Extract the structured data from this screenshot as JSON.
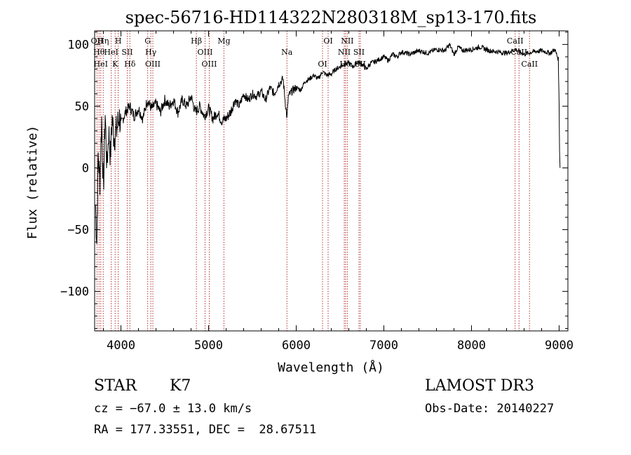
{
  "chart_data": {
    "type": "line",
    "title": "spec-56716-HD114322N280318M_sp13-170.fits",
    "xlabel": "Wavelength (Å)",
    "ylabel": "Flux (relative)",
    "xlim": [
      3700,
      9100
    ],
    "ylim": [
      -132,
      111
    ],
    "xticks": [
      4000,
      5000,
      6000,
      7000,
      8000,
      9000
    ],
    "xtick_labels": [
      "4000",
      "5000",
      "6000",
      "7000",
      "8000",
      "9000"
    ],
    "yticks": [
      -100,
      -50,
      0,
      50,
      100
    ],
    "ytick_labels": [
      "−100",
      "−50",
      "0",
      "50",
      "100"
    ],
    "grid": false,
    "series": [
      {
        "name": "spectrum",
        "x": [
          3710,
          3725,
          3740,
          3760,
          3780,
          3800,
          3820,
          3840,
          3860,
          3880,
          3900,
          3920,
          3950,
          3980,
          4000,
          4050,
          4100,
          4150,
          4200,
          4250,
          4300,
          4350,
          4400,
          4450,
          4500,
          4550,
          4600,
          4650,
          4700,
          4750,
          4800,
          4850,
          4900,
          4950,
          5000,
          5050,
          5100,
          5150,
          5200,
          5250,
          5300,
          5350,
          5400,
          5450,
          5500,
          5550,
          5600,
          5650,
          5700,
          5750,
          5800,
          5850,
          5880,
          5895,
          5910,
          5950,
          6000,
          6050,
          6100,
          6150,
          6200,
          6250,
          6300,
          6350,
          6400,
          6450,
          6500,
          6550,
          6600,
          6650,
          6700,
          6750,
          6800,
          6850,
          6900,
          6950,
          7000,
          7050,
          7100,
          7150,
          7200,
          7300,
          7400,
          7500,
          7600,
          7700,
          7750,
          7800,
          7850,
          7900,
          8000,
          8100,
          8200,
          8300,
          8400,
          8500,
          8600,
          8700,
          8800,
          8900,
          8950,
          8990,
          9000,
          9005,
          9010
        ],
        "y": [
          -30,
          -60,
          10,
          -10,
          40,
          -20,
          45,
          0,
          30,
          10,
          40,
          25,
          30,
          42,
          35,
          45,
          50,
          42,
          48,
          40,
          55,
          48,
          52,
          45,
          55,
          50,
          55,
          45,
          55,
          50,
          58,
          45,
          50,
          42,
          48,
          40,
          45,
          38,
          40,
          45,
          55,
          50,
          60,
          55,
          60,
          58,
          62,
          55,
          65,
          60,
          68,
          72,
          50,
          40,
          58,
          62,
          65,
          63,
          70,
          72,
          75,
          72,
          78,
          75,
          76,
          80,
          82,
          84,
          85,
          82,
          86,
          84,
          80,
          85,
          86,
          88,
          90,
          87,
          92,
          90,
          94,
          92,
          95,
          93,
          96,
          95,
          100,
          92,
          98,
          95,
          96,
          98,
          95,
          94,
          93,
          96,
          92,
          94,
          95,
          93,
          96,
          88,
          50,
          15,
          0
        ]
      }
    ],
    "line_labels": [
      {
        "x": 3727,
        "labels": [
          "OII"
        ]
      },
      {
        "x": 3750,
        "labels": [
          "Hθ"
        ]
      },
      {
        "x": 3770,
        "labels": [
          "HeI"
        ]
      },
      {
        "x": 3798,
        "labels": [
          "Hη"
        ]
      },
      {
        "x": 3889,
        "labels": [
          "HeI"
        ]
      },
      {
        "x": 3934,
        "labels": [
          "K"
        ]
      },
      {
        "x": 3969,
        "labels": [
          "H"
        ]
      },
      {
        "x": 4072,
        "labels": [
          "SII"
        ]
      },
      {
        "x": 4102,
        "labels": [
          "Hδ"
        ]
      },
      {
        "x": 4305,
        "labels": [
          "G"
        ]
      },
      {
        "x": 4341,
        "labels": [
          "Hγ"
        ]
      },
      {
        "x": 4364,
        "labels": [
          "OIII"
        ]
      },
      {
        "x": 4861,
        "labels": [
          "Hβ"
        ]
      },
      {
        "x": 4960,
        "labels": [
          "OIII"
        ]
      },
      {
        "x": 5008,
        "labels": [
          "OIII"
        ]
      },
      {
        "x": 5175,
        "labels": [
          "Mg"
        ]
      },
      {
        "x": 5894,
        "labels": [
          "Na"
        ]
      },
      {
        "x": 6300,
        "labels": [
          "OI"
        ]
      },
      {
        "x": 6364,
        "labels": [
          "OI"
        ]
      },
      {
        "x": 6548,
        "labels": [
          "NII"
        ]
      },
      {
        "x": 6563,
        "labels": [
          "Hα"
        ]
      },
      {
        "x": 6583,
        "labels": [
          "NII"
        ]
      },
      {
        "x": 6716,
        "labels": [
          "SII"
        ]
      },
      {
        "x": 6731,
        "labels": [
          "SII"
        ]
      },
      {
        "x": 8498,
        "labels": [
          "CaII"
        ]
      },
      {
        "x": 8542,
        "labels": [
          "CaII"
        ]
      },
      {
        "x": 8662,
        "labels": [
          "CaII"
        ]
      }
    ],
    "line_color": "#000000",
    "marker_color": "#b03030"
  },
  "info": {
    "class_label": "STAR",
    "subclass_label": "K7",
    "survey": "LAMOST DR3",
    "redshift": "cz = −67.0 ± 13.0 km/s",
    "obs_date": "Obs-Date: 20140227",
    "coords": "RA = 177.33551, DEC =  28.67511"
  }
}
